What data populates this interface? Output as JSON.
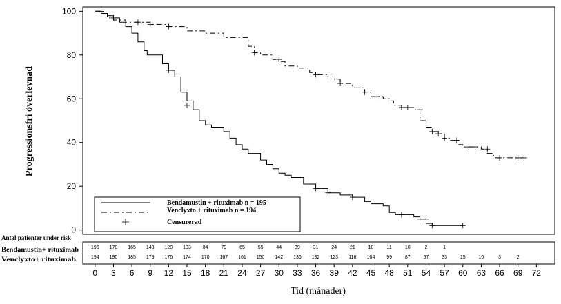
{
  "chart_data": {
    "type": "line",
    "title": "",
    "xlabel": "Tid (månader)",
    "ylabel": "Progressionsfri överlevnad",
    "xlim": [
      -2,
      75
    ],
    "ylim": [
      -2,
      102
    ],
    "x_ticks": [
      0,
      3,
      6,
      9,
      12,
      15,
      18,
      21,
      24,
      27,
      30,
      33,
      36,
      39,
      42,
      45,
      48,
      51,
      54,
      57,
      60,
      63,
      66,
      69,
      72
    ],
    "y_ticks": [
      0,
      20,
      40,
      60,
      80,
      100
    ],
    "legend": {
      "placement": "bottom-left",
      "entries": [
        "Bendamustin + rituximab n = 195",
        "Venclyxto + rituximab n = 194",
        "Censurerad"
      ]
    },
    "series": [
      {
        "name": "Bendamustin + rituximab n = 195",
        "style": "solid",
        "points": [
          [
            0,
            100
          ],
          [
            1,
            99
          ],
          [
            2,
            98
          ],
          [
            3,
            97
          ],
          [
            4,
            95
          ],
          [
            5,
            93
          ],
          [
            6,
            90
          ],
          [
            7,
            86
          ],
          [
            8,
            82
          ],
          [
            8.5,
            80
          ],
          [
            10,
            80
          ],
          [
            11,
            76
          ],
          [
            12,
            73
          ],
          [
            13,
            70
          ],
          [
            14,
            63
          ],
          [
            15,
            59
          ],
          [
            16,
            55
          ],
          [
            17,
            50
          ],
          [
            18,
            48
          ],
          [
            19,
            47
          ],
          [
            21,
            45
          ],
          [
            22,
            42
          ],
          [
            23,
            39
          ],
          [
            24,
            37
          ],
          [
            25,
            35
          ],
          [
            27,
            32
          ],
          [
            28,
            30
          ],
          [
            29,
            28
          ],
          [
            30,
            26
          ],
          [
            31,
            25
          ],
          [
            32,
            24
          ],
          [
            34,
            21
          ],
          [
            36,
            19
          ],
          [
            38,
            17
          ],
          [
            40,
            16
          ],
          [
            42,
            15
          ],
          [
            44,
            13
          ],
          [
            45,
            12
          ],
          [
            47,
            11
          ],
          [
            48,
            8
          ],
          [
            49,
            7
          ],
          [
            50,
            7
          ],
          [
            52,
            6
          ],
          [
            53,
            5
          ],
          [
            54,
            3
          ],
          [
            55,
            2
          ],
          [
            58,
            2
          ],
          [
            60,
            2
          ]
        ],
        "censor_points": [
          [
            1,
            100
          ],
          [
            12,
            73
          ],
          [
            15,
            57
          ],
          [
            36,
            19
          ],
          [
            38,
            17
          ],
          [
            42,
            15
          ],
          [
            50,
            7
          ],
          [
            53,
            5
          ],
          [
            54,
            5
          ],
          [
            55,
            2
          ],
          [
            60,
            2
          ]
        ]
      },
      {
        "name": "Venclyxto + rituximab n = 194",
        "style": "dash-dot",
        "points": [
          [
            0,
            100
          ],
          [
            1,
            99
          ],
          [
            2,
            97
          ],
          [
            3,
            96
          ],
          [
            4,
            96
          ],
          [
            5,
            95
          ],
          [
            6,
            95
          ],
          [
            9,
            94
          ],
          [
            12,
            93
          ],
          [
            15,
            91
          ],
          [
            18,
            90
          ],
          [
            21,
            88
          ],
          [
            24,
            88
          ],
          [
            25,
            84
          ],
          [
            26,
            81
          ],
          [
            27,
            80
          ],
          [
            29,
            78
          ],
          [
            30,
            77
          ],
          [
            31,
            75
          ],
          [
            33,
            74
          ],
          [
            35,
            72
          ],
          [
            36,
            71
          ],
          [
            38,
            70
          ],
          [
            39,
            69
          ],
          [
            40,
            67
          ],
          [
            42,
            65
          ],
          [
            44,
            63
          ],
          [
            45,
            61
          ],
          [
            47,
            60
          ],
          [
            48,
            59
          ],
          [
            48.7,
            57
          ],
          [
            50,
            56
          ],
          [
            52,
            55
          ],
          [
            53,
            50
          ],
          [
            54,
            47
          ],
          [
            55,
            45
          ],
          [
            56,
            44
          ],
          [
            57,
            42
          ],
          [
            58,
            41
          ],
          [
            59,
            39
          ],
          [
            60,
            38
          ],
          [
            62,
            38
          ],
          [
            63,
            37
          ],
          [
            64,
            35
          ],
          [
            65,
            33
          ],
          [
            66,
            33
          ],
          [
            68,
            33
          ],
          [
            70,
            33
          ]
        ],
        "censor_points": [
          [
            1,
            100
          ],
          [
            3,
            97
          ],
          [
            7,
            95
          ],
          [
            9,
            94
          ],
          [
            12,
            93
          ],
          [
            26,
            81
          ],
          [
            30,
            78
          ],
          [
            36,
            71
          ],
          [
            38,
            70
          ],
          [
            40,
            67
          ],
          [
            44,
            63
          ],
          [
            46,
            61
          ],
          [
            50,
            56
          ],
          [
            51,
            56
          ],
          [
            53,
            55
          ],
          [
            55,
            45
          ],
          [
            56,
            44
          ],
          [
            57,
            42
          ],
          [
            59,
            41
          ],
          [
            61,
            38
          ],
          [
            62,
            38
          ],
          [
            64,
            37
          ],
          [
            66,
            33
          ],
          [
            69,
            33
          ],
          [
            70,
            33
          ]
        ]
      }
    ],
    "risk_table": {
      "title": "Antal patienter under risk",
      "rows": [
        {
          "label": "Bendamustin+ rituximab",
          "values": [
            "195",
            "178",
            "165",
            "143",
            "128",
            "103",
            "84",
            "79",
            "65",
            "55",
            "44",
            "39",
            "31",
            "24",
            "21",
            "18",
            "11",
            "10",
            "2",
            "1",
            "",
            "",
            "",
            "",
            ""
          ]
        },
        {
          "label": "Venclyxto+ rituximab",
          "values": [
            "194",
            "190",
            "185",
            "179",
            "176",
            "174",
            "170",
            "167",
            "161",
            "150",
            "142",
            "136",
            "132",
            "123",
            "116",
            "104",
            "99",
            "87",
            "57",
            "33",
            "15",
            "10",
            "3",
            "2",
            ""
          ]
        }
      ]
    }
  }
}
